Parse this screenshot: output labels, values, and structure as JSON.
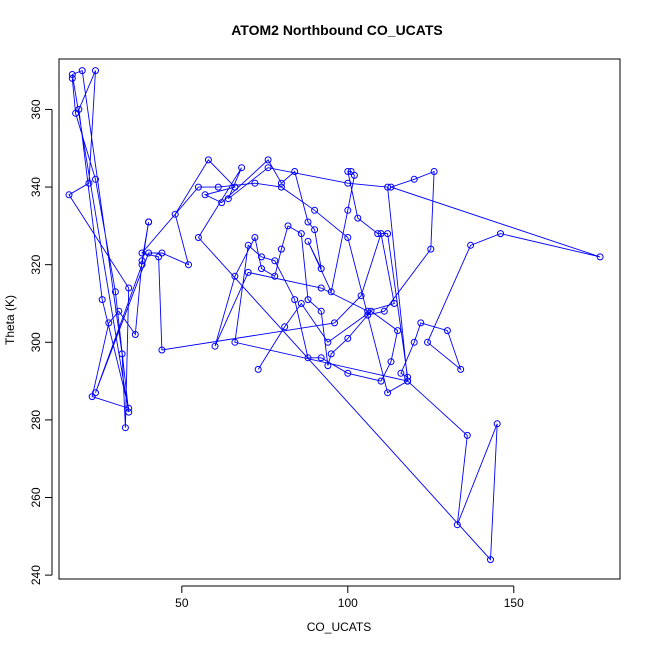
{
  "chart_data": {
    "type": "line",
    "title": "ATOM2 Northbound CO_UCATS",
    "xlabel": "CO_UCATS",
    "ylabel": "Theta (K)",
    "xlim": [
      13,
      182
    ],
    "ylim": [
      239,
      373
    ],
    "xticks": [
      50,
      100,
      150
    ],
    "yticks": [
      240,
      260,
      280,
      300,
      320,
      340,
      360
    ],
    "series_color": "#0000ff",
    "grid": false,
    "x": [
      17,
      18,
      24,
      30,
      34,
      17,
      20,
      32,
      33,
      34,
      16,
      22,
      24,
      19,
      26,
      34,
      23,
      28,
      31,
      36,
      38,
      40,
      40,
      38,
      24,
      40,
      44,
      52,
      48,
      58,
      66,
      57,
      62,
      76,
      80,
      84,
      88,
      90,
      92,
      88,
      95,
      100,
      102,
      101,
      100,
      103,
      109,
      112,
      118,
      116,
      120,
      122,
      130,
      134,
      124,
      137,
      146,
      176,
      113,
      120,
      126,
      125,
      111,
      106,
      100,
      95,
      94,
      92,
      88,
      86,
      82,
      80,
      78,
      74,
      72,
      66,
      60,
      70,
      92,
      106,
      114,
      110,
      104,
      96,
      44,
      43,
      38,
      55,
      61,
      72,
      80,
      90,
      100,
      112,
      118,
      136,
      133,
      145,
      143,
      55,
      68,
      64,
      76,
      100,
      112,
      118,
      66,
      70,
      74,
      78,
      84,
      88,
      92,
      100,
      110,
      113,
      115,
      107,
      94,
      86,
      81,
      73
    ],
    "y": [
      368,
      359,
      342,
      313,
      282,
      369,
      370,
      297,
      278,
      314,
      338,
      341,
      370,
      360,
      311,
      283,
      286,
      305,
      308,
      302,
      321,
      331,
      331,
      320,
      287,
      323,
      323,
      320,
      333,
      347,
      340,
      338,
      336,
      347,
      341,
      344,
      331,
      329,
      319,
      326,
      313,
      334,
      343,
      344,
      344,
      332,
      328,
      328,
      291,
      292,
      300,
      305,
      303,
      293,
      300,
      325,
      328,
      322,
      340,
      342,
      344,
      324,
      308,
      307,
      301,
      297,
      294,
      308,
      311,
      328,
      330,
      324,
      317,
      319,
      327,
      317,
      299,
      318,
      314,
      308,
      310,
      328,
      312,
      305,
      298,
      322,
      323,
      340,
      340,
      341,
      340,
      334,
      327,
      287,
      290,
      276,
      253,
      279,
      244,
      327,
      345,
      337,
      345,
      341,
      340,
      290,
      300,
      325,
      322,
      321,
      311,
      296,
      296,
      292,
      290,
      295,
      303,
      308,
      300,
      310,
      304,
      293
    ]
  }
}
